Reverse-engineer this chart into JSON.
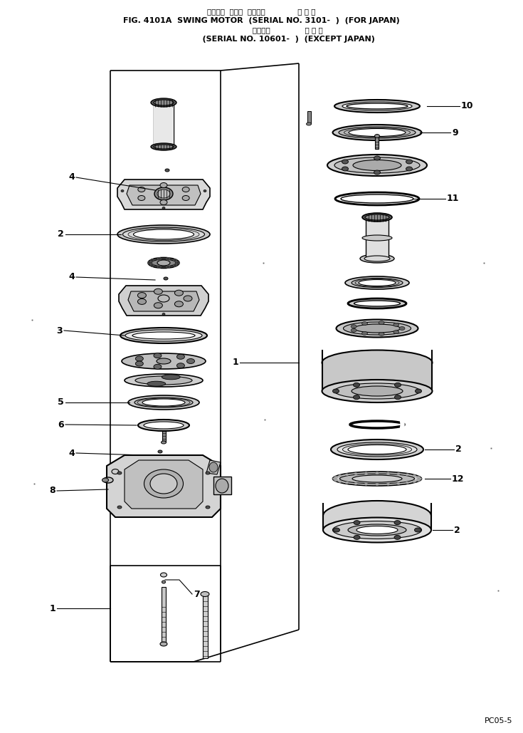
{
  "title_line1": "スイング  モータ  適用号機              国 内 向",
  "title_line2": "FIG. 4101A  SWING MOTOR  (SERIAL NO. 3101-  )  (FOR JAPAN)",
  "title_line3": "                       適用号機               海 外 向",
  "title_line4": "                    (SERIAL NO. 10601-  )  (EXCEPT JAPAN)",
  "watermark": "PC05-5",
  "bg_color": "#ffffff",
  "line_color": "#000000"
}
